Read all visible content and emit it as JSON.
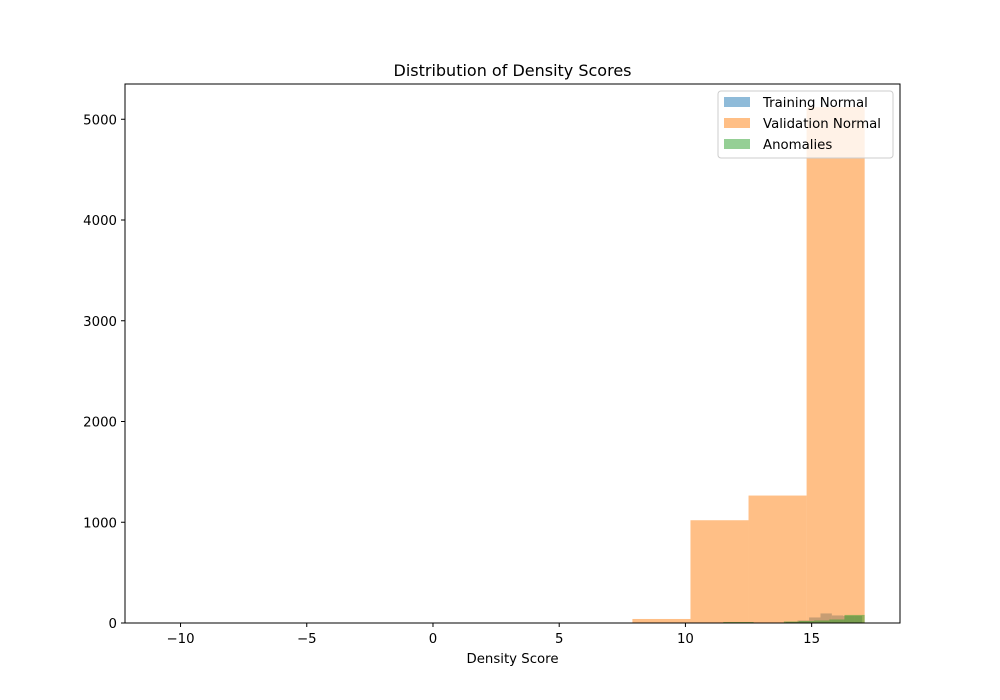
{
  "chart_data": {
    "type": "histogram",
    "title": "Distribution of Density Scores",
    "xlabel": "Density Score",
    "ylabel": "",
    "xlim": [
      -12.2,
      18.5
    ],
    "ylim": [
      0,
      5350
    ],
    "xticks": [
      -10,
      -5,
      0,
      5,
      10,
      15
    ],
    "xtick_labels": [
      "−10",
      "−5",
      "0",
      "5",
      "10",
      "15"
    ],
    "yticks": [
      0,
      1000,
      2000,
      3000,
      4000,
      5000
    ],
    "ytick_labels": [
      "0",
      "1000",
      "2000",
      "3000",
      "4000",
      "5000"
    ],
    "grid": false,
    "legend_position": "top-right",
    "series": [
      {
        "name": "Training Normal",
        "color": "#1f77b4",
        "alpha": 0.5,
        "bins": [
          {
            "x0": 13.98,
            "x1": 14.44,
            "count": 10
          },
          {
            "x0": 14.44,
            "x1": 14.9,
            "count": 25
          },
          {
            "x0": 14.9,
            "x1": 15.35,
            "count": 55
          },
          {
            "x0": 15.35,
            "x1": 15.8,
            "count": 95
          },
          {
            "x0": 15.8,
            "x1": 16.25,
            "count": 75
          },
          {
            "x0": 16.25,
            "x1": 16.71,
            "count": 70
          },
          {
            "x0": 16.71,
            "x1": 17.0,
            "count": 70
          }
        ]
      },
      {
        "name": "Validation Normal",
        "color": "#ff7f0e",
        "alpha": 0.5,
        "bins": [
          {
            "x0": 7.9,
            "x1": 10.2,
            "count": 40
          },
          {
            "x0": 10.2,
            "x1": 12.5,
            "count": 1020
          },
          {
            "x0": 12.5,
            "x1": 14.8,
            "count": 1265
          },
          {
            "x0": 14.8,
            "x1": 17.1,
            "count": 5120
          }
        ]
      },
      {
        "name": "Anomalies",
        "color": "#2ca02c",
        "alpha": 0.5,
        "bins": [
          {
            "x0": 10.9,
            "x1": 11.5,
            "count": 5
          },
          {
            "x0": 11.5,
            "x1": 12.1,
            "count": 10
          },
          {
            "x0": 12.1,
            "x1": 12.7,
            "count": 10
          },
          {
            "x0": 12.7,
            "x1": 13.3,
            "count": 5
          },
          {
            "x0": 13.3,
            "x1": 13.9,
            "count": 5
          },
          {
            "x0": 13.9,
            "x1": 14.5,
            "count": 15
          },
          {
            "x0": 14.5,
            "x1": 15.1,
            "count": 20
          },
          {
            "x0": 15.1,
            "x1": 15.7,
            "count": 25
          },
          {
            "x0": 15.7,
            "x1": 16.3,
            "count": 35
          },
          {
            "x0": 16.3,
            "x1": 17.1,
            "count": 80
          }
        ]
      }
    ]
  }
}
